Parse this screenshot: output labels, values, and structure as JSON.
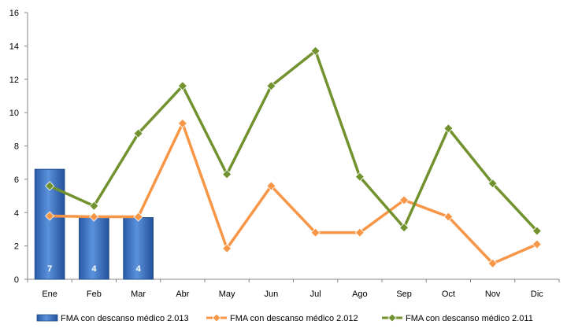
{
  "chart_data": {
    "type": "bar",
    "categories": [
      "Ene",
      "Feb",
      "Mar",
      "Abr",
      "May",
      "Jun",
      "Jul",
      "Ago",
      "Sep",
      "Oct",
      "Nov",
      "Dic"
    ],
    "ylim": [
      0,
      16
    ],
    "yticks": [
      0,
      2,
      4,
      6,
      8,
      10,
      12,
      14,
      16
    ],
    "grid": false,
    "legend_position": "bottom",
    "series": [
      {
        "name": "FMA con descanso médico 2.013",
        "type": "bar",
        "color": "#3F78C8",
        "values": [
          6.6,
          3.7,
          3.7,
          null,
          null,
          null,
          null,
          null,
          null,
          null,
          null,
          null
        ],
        "labels": [
          "7",
          "4",
          "4",
          null,
          null,
          null,
          null,
          null,
          null,
          null,
          null,
          null
        ]
      },
      {
        "name": "FMA con descanso médico 2.012",
        "type": "line",
        "color": "#F79646",
        "marker": "diamond",
        "values": [
          3.8,
          3.75,
          3.75,
          9.35,
          1.85,
          5.6,
          2.8,
          2.8,
          4.75,
          3.75,
          0.95,
          2.1
        ]
      },
      {
        "name": "FMA con descanso médico 2.011",
        "type": "line",
        "color": "#71922E",
        "marker": "diamond",
        "values": [
          5.6,
          4.4,
          8.75,
          11.6,
          6.3,
          11.6,
          13.7,
          6.15,
          3.1,
          9.05,
          5.75,
          2.9
        ]
      }
    ]
  }
}
